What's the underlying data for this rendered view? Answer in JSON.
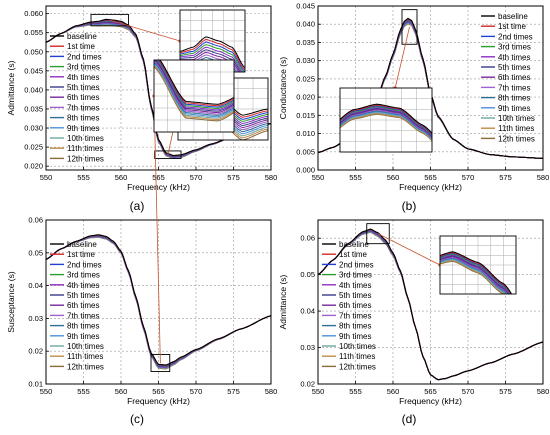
{
  "legend_labels": [
    "baseline",
    "1st time",
    "2nd times",
    "3rd times",
    "4th times",
    "5th times",
    "6th times",
    "7th times",
    "8th times",
    "9th times",
    "10th times",
    "11th times",
    "12th times"
  ],
  "colors": [
    "#000000",
    "#d62728",
    "#1f3fd6",
    "#2ca02c",
    "#8b2fc9",
    "#3a3a8a",
    "#7a2a9a",
    "#a060d0",
    "#2f6f8f",
    "#4f8fdf",
    "#6fa8a0",
    "#c08a4a",
    "#8a6a3a"
  ],
  "chart_data": [
    {
      "type": "line",
      "panel_label": "(a)",
      "xlabel": "Frequency (kHz)",
      "ylabel": "Admittance (s)",
      "xlim": [
        550,
        580
      ],
      "ylim": [
        0.019,
        0.062
      ],
      "xticks": [
        "550",
        "555",
        "560",
        "565",
        "570",
        "575",
        "580"
      ],
      "yticks": [
        "0.020",
        "0.025",
        "0.030",
        "0.035",
        "0.040",
        "0.045",
        "0.050",
        "0.055",
        "0.060"
      ],
      "grid": true,
      "legend": "left",
      "x": [
        550,
        552,
        554,
        556,
        557,
        558,
        559,
        560,
        561,
        562,
        563,
        564,
        565,
        566,
        567,
        568,
        570,
        572,
        575,
        578,
        580
      ],
      "series_base": [
        0.0525,
        0.0548,
        0.0568,
        0.0578,
        0.058,
        0.0585,
        0.0583,
        0.058,
        0.057,
        0.0545,
        0.048,
        0.036,
        0.027,
        0.0235,
        0.0228,
        0.023,
        0.0243,
        0.0258,
        0.0278,
        0.0298,
        0.0312
      ],
      "spread": [
        0,
        0,
        0.0003,
        0.0008,
        0.0012,
        0.0015,
        0.0015,
        0.0014,
        0.0012,
        0.0008,
        0.0006,
        0.0006,
        0.0007,
        0.0008,
        0.0008,
        0.0007,
        0.0004,
        0.0002,
        0,
        0,
        0
      ],
      "zoom_boxes": [
        [
          556,
          561,
          0.0568,
          0.0598
        ],
        [
          564.5,
          568,
          0.022,
          0.024
        ]
      ]
    },
    {
      "type": "line",
      "panel_label": "(b)",
      "xlabel": "Frequency (kHz)",
      "ylabel": "Conductance (s)",
      "xlim": [
        550,
        580
      ],
      "ylim": [
        0.0,
        0.045
      ],
      "xticks": [
        "550",
        "555",
        "560",
        "565",
        "570",
        "575",
        "580"
      ],
      "yticks": [
        "0.000",
        "0.005",
        "0.010",
        "0.015",
        "0.020",
        "0.025",
        "0.030",
        "0.035",
        "0.040",
        "0.045"
      ],
      "grid": true,
      "legend": "right",
      "x": [
        550,
        552,
        554,
        556,
        558,
        559,
        560,
        561,
        561.5,
        562,
        562.5,
        563,
        564,
        565,
        566,
        568,
        570,
        573,
        576,
        580
      ],
      "series_base": [
        0.0048,
        0.0062,
        0.0085,
        0.0125,
        0.0205,
        0.0258,
        0.0318,
        0.0385,
        0.0408,
        0.0416,
        0.041,
        0.0385,
        0.0305,
        0.021,
        0.0148,
        0.0085,
        0.0058,
        0.0042,
        0.0036,
        0.0032
      ],
      "spread": [
        0,
        0,
        0,
        0.0002,
        0.0004,
        0.0006,
        0.0008,
        0.0012,
        0.0014,
        0.0015,
        0.0014,
        0.0012,
        0.0008,
        0.0005,
        0.0003,
        0.0001,
        0,
        0,
        0,
        0
      ],
      "zoom_boxes": [
        [
          561.2,
          563.2,
          0.0345,
          0.044
        ]
      ]
    },
    {
      "type": "line",
      "panel_label": "(c)",
      "xlabel": "Frequency (kHz)",
      "ylabel": "Susceptance (s)",
      "xlim": [
        550,
        580
      ],
      "ylim": [
        0.01,
        0.06
      ],
      "xticks": [
        "550",
        "555",
        "560",
        "565",
        "570",
        "575",
        "580"
      ],
      "yticks": [
        "0.01",
        "0.02",
        "0.03",
        "0.04",
        "0.05",
        "0.06"
      ],
      "grid": true,
      "legend": "left",
      "x": [
        550,
        552,
        554,
        556,
        557,
        558,
        559,
        560,
        561,
        562,
        563,
        564,
        565,
        566,
        567,
        568,
        570,
        573,
        576,
        580
      ],
      "series_base": [
        0.048,
        0.0512,
        0.0535,
        0.0552,
        0.0555,
        0.055,
        0.0535,
        0.0505,
        0.0445,
        0.0365,
        0.0275,
        0.0195,
        0.016,
        0.0158,
        0.0168,
        0.0182,
        0.0205,
        0.0238,
        0.0268,
        0.0308
      ],
      "spread": [
        0,
        0,
        0.0002,
        0.0006,
        0.0008,
        0.0008,
        0.0007,
        0.0006,
        0.0006,
        0.0007,
        0.0008,
        0.001,
        0.0012,
        0.0012,
        0.001,
        0.0008,
        0.0004,
        0.0002,
        0,
        0
      ],
      "zoom_boxes": [
        [
          564,
          566.5,
          0.0138,
          0.019
        ]
      ]
    },
    {
      "type": "line",
      "panel_label": "(d)",
      "xlabel": "Frequency (kHz)",
      "ylabel": "Admittance (s)",
      "xlim": [
        550,
        580
      ],
      "ylim": [
        0.02,
        0.065
      ],
      "xticks": [
        "550",
        "555",
        "560",
        "565",
        "570",
        "575",
        "580"
      ],
      "yticks": [
        "0.02",
        "0.03",
        "0.04",
        "0.05",
        "0.06"
      ],
      "grid": true,
      "legend": "left",
      "x": [
        550,
        552,
        554,
        556,
        557,
        558,
        559,
        560,
        561,
        562,
        563,
        564,
        565,
        566,
        567,
        568,
        570,
        573,
        576,
        580
      ],
      "series_base": [
        0.05,
        0.054,
        0.0585,
        0.0618,
        0.0625,
        0.0615,
        0.0595,
        0.056,
        0.051,
        0.0435,
        0.0355,
        0.0275,
        0.0225,
        0.0212,
        0.0215,
        0.0222,
        0.0236,
        0.0258,
        0.0282,
        0.0315
      ],
      "spread": [
        0,
        0,
        0.0003,
        0.0007,
        0.0009,
        0.001,
        0.001,
        0.0008,
        0.0005,
        0.0002,
        0,
        0,
        0,
        0,
        0,
        0,
        0,
        0,
        0,
        0
      ],
      "zoom_boxes": [
        [
          556.5,
          559.5,
          0.0585,
          0.064
        ]
      ]
    }
  ]
}
